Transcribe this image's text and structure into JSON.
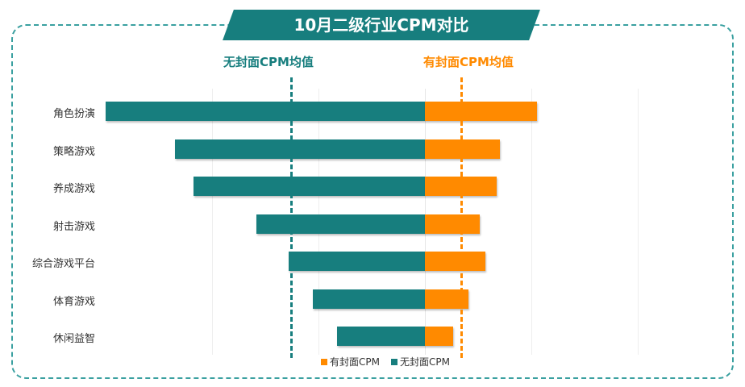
{
  "title": "10月二级行业CPM对比",
  "avg_labels": {
    "no_cover": "无封面CPM均值",
    "with_cover": "有封面CPM均值"
  },
  "legend": [
    {
      "label": "有封面CPM",
      "color": "#ff8a00"
    },
    {
      "label": "无封面CPM",
      "color": "#177e7e"
    }
  ],
  "colors": {
    "teal": "#177e7e",
    "orange": "#ff8a00",
    "frame": "#3aa0a0"
  },
  "chart_data": {
    "type": "bar",
    "orientation": "horizontal-diverging",
    "title": "10月二级行业CPM对比",
    "categories": [
      "角色扮演",
      "策略游戏",
      "养成游戏",
      "射击游戏",
      "综合游戏平台",
      "体育游戏",
      "休闲益智"
    ],
    "series": [
      {
        "name": "无封面CPM",
        "direction": "left",
        "values": [
          396,
          310,
          287,
          209,
          169,
          139,
          109
        ]
      },
      {
        "name": "有封面CPM",
        "direction": "right",
        "values": [
          139,
          93,
          89,
          68,
          75,
          54,
          35
        ]
      }
    ],
    "reference_lines": [
      {
        "name": "无封面CPM均值",
        "value": 166
      },
      {
        "name": "有封面CPM均值",
        "value": 45
      }
    ],
    "units": "relative (px-scale estimate, no axis ticks shown)",
    "grid": true,
    "legend_position": "bottom"
  }
}
